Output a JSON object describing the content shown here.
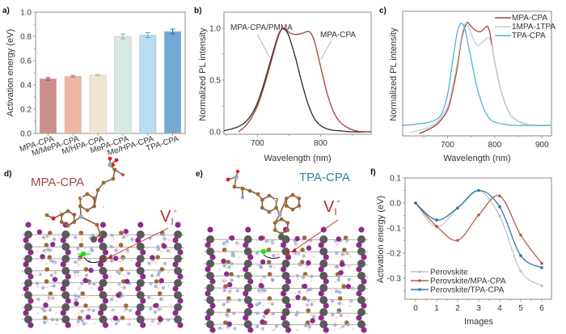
{
  "figure": {
    "panels": {
      "a": "a)",
      "b": "b)",
      "c": "c)",
      "d": "d)",
      "e": "e)",
      "f": "f)"
    },
    "structures": {
      "d": {
        "title": "MPA-CPA",
        "title_color": "#a04a45",
        "vacancy_label": "V",
        "vacancy_sub": "I",
        "vacancy_sup": "-",
        "vacancy_color": "#c0282b"
      },
      "e": {
        "title": "TPA-CPA",
        "title_color": "#2f7fae",
        "vacancy_label": "V",
        "vacancy_sub": "I",
        "vacancy_sup": "-",
        "vacancy_color": "#c0282b"
      }
    },
    "atom_colors": {
      "pb": "#5a5a5a",
      "iodine": "#8e2a8c",
      "carbon": "#9a6a3a",
      "nitrogen": "#9aa8d0",
      "hydrogen": "#f0d8d8",
      "oxygen": "#e02020",
      "migrating_iodine": "#22dd22"
    }
  },
  "chart_data": [
    {
      "id": "a",
      "type": "bar",
      "title": "",
      "xlabel": "",
      "ylabel": "Activation energy (eV)",
      "ylim": [
        0.0,
        1.0
      ],
      "yticks": [
        "0.0",
        "0.2",
        "0.4",
        "0.6",
        "0.8",
        "1.0"
      ],
      "categories": [
        "MPA-CPA",
        "M/MePA-CPA",
        "M/HPA-CPA",
        "MePA-CPA",
        "Me/HPA-CPA",
        "TPA-CPA"
      ],
      "values": [
        0.45,
        0.47,
        0.48,
        0.8,
        0.81,
        0.84
      ],
      "errors": [
        0.01,
        0.008,
        0.006,
        0.02,
        0.02,
        0.02
      ],
      "colors": [
        "#c9908d",
        "#ecb8a3",
        "#eee6d2",
        "#d8e8e2",
        "#b9dcef",
        "#74a9d3"
      ],
      "error_colors": [
        "#9c3a3a",
        "#c87060",
        "#c8b890",
        "#90a8a0",
        "#5a9ac8",
        "#2a6aa8"
      ],
      "grid": false,
      "legend": "none"
    },
    {
      "id": "b",
      "type": "line",
      "xlabel": "Wavelength (nm)",
      "ylabel": "Normalized PL intensity",
      "xlim": [
        647,
        880
      ],
      "ylim": [
        -0.02,
        1.12
      ],
      "xticks": [
        "700",
        "800"
      ],
      "yticks": [
        "0.0",
        "0.5",
        "1.0"
      ],
      "grid": false,
      "legend": "annotations",
      "series": [
        {
          "name": "MPA-CPA/PMMA",
          "color": "#2b2b2b",
          "x": [
            647,
            660,
            670,
            680,
            690,
            700,
            710,
            720,
            730,
            735,
            740,
            745,
            750,
            760,
            770,
            780,
            790,
            800,
            810,
            820,
            830,
            850,
            880
          ],
          "y": [
            0.01,
            0.03,
            0.05,
            0.09,
            0.16,
            0.28,
            0.46,
            0.67,
            0.88,
            0.96,
            1.0,
            0.98,
            0.92,
            0.72,
            0.48,
            0.27,
            0.13,
            0.06,
            0.03,
            0.015,
            0.01,
            0.0,
            0.0
          ]
        },
        {
          "name": "MPA-CPA",
          "color": "#a8403c",
          "x": [
            670,
            680,
            690,
            700,
            710,
            720,
            730,
            735,
            740,
            745,
            750,
            760,
            770,
            780,
            785,
            790,
            795,
            800,
            810,
            820,
            830,
            840,
            850,
            860,
            880
          ],
          "y": [
            0.0,
            0.05,
            0.13,
            0.25,
            0.43,
            0.64,
            0.86,
            0.95,
            1.0,
            0.99,
            0.96,
            0.94,
            0.95,
            0.97,
            0.95,
            0.88,
            0.76,
            0.63,
            0.38,
            0.2,
            0.1,
            0.05,
            0.02,
            0.005,
            0.0
          ]
        }
      ],
      "annotations": [
        {
          "text": "MPA-CPA/PMMA",
          "series": "MPA-CPA/PMMA",
          "color": "#555555"
        },
        {
          "text": "MPA-CPA",
          "series": "MPA-CPA",
          "color": "#b05050"
        }
      ]
    },
    {
      "id": "c",
      "type": "line",
      "xlabel": "Wavelength (nm)",
      "ylabel": "Normalized PL intensity",
      "xlim": [
        605,
        920
      ],
      "ylim": [
        -0.1,
        1.12
      ],
      "xticks": [
        "700",
        "800",
        "900"
      ],
      "yticks": [],
      "grid": false,
      "legend": "top-right",
      "series": [
        {
          "name": "MPA-CPA",
          "color": "#a8403c",
          "x": [
            640,
            660,
            680,
            700,
            710,
            720,
            730,
            740,
            745,
            750,
            760,
            770,
            780,
            785,
            790,
            795,
            800,
            810,
            820,
            830,
            840,
            860,
            880,
            920
          ],
          "y": [
            -0.08,
            -0.04,
            0.02,
            0.15,
            0.32,
            0.55,
            0.85,
            1.0,
            1.0,
            0.97,
            0.93,
            0.92,
            0.96,
            0.97,
            0.9,
            0.76,
            0.62,
            0.4,
            0.24,
            0.13,
            0.07,
            0.02,
            0.0,
            0.0
          ]
        },
        {
          "name": "1MPA-1TPA",
          "color": "#b9d3ca",
          "x": [
            620,
            640,
            660,
            680,
            700,
            710,
            720,
            730,
            738,
            745,
            750,
            760,
            765,
            770,
            780,
            788,
            795,
            800,
            810,
            820,
            830,
            840,
            860,
            880,
            920
          ],
          "y": [
            -0.07,
            -0.05,
            -0.02,
            0.04,
            0.18,
            0.36,
            0.6,
            0.88,
            1.0,
            0.97,
            0.9,
            0.8,
            0.78,
            0.8,
            0.84,
            0.86,
            0.75,
            0.62,
            0.4,
            0.24,
            0.13,
            0.07,
            0.02,
            0.0,
            0.0
          ]
        },
        {
          "name": "TPA-CPA",
          "color": "#55b3d3",
          "x": [
            605,
            630,
            660,
            680,
            690,
            700,
            710,
            720,
            728,
            735,
            740,
            750,
            760,
            770,
            780,
            790,
            800,
            820,
            840,
            880,
            920
          ],
          "y": [
            0.0,
            0.01,
            0.03,
            0.07,
            0.14,
            0.3,
            0.6,
            0.9,
            1.0,
            0.97,
            0.88,
            0.65,
            0.42,
            0.25,
            0.13,
            0.06,
            0.03,
            0.01,
            0.0,
            0.0,
            0.0
          ]
        }
      ]
    },
    {
      "id": "f",
      "type": "line",
      "xlabel": "Images",
      "ylabel": "Activation energy (eV)",
      "xlim": [
        -0.6,
        6.6
      ],
      "ylim": [
        -0.38,
        0.1
      ],
      "xticks": [
        "0",
        "1",
        "2",
        "3",
        "4",
        "5",
        "6"
      ],
      "yticks": [
        "0.1",
        "0.0",
        "-0.1",
        "-0.2",
        "-0.3"
      ],
      "grid": false,
      "legend": "bottom-left",
      "series": [
        {
          "name": "Perovskite",
          "color": "#c4c4c4",
          "x": [
            0,
            1,
            2,
            3,
            4,
            5,
            6
          ],
          "y": [
            0.0,
            -0.095,
            -0.02,
            0.05,
            -0.052,
            -0.272,
            -0.33
          ]
        },
        {
          "name": "Perovskite/MPA-CPA",
          "color": "#b65a4e",
          "x": [
            0,
            1,
            2,
            3,
            4,
            5,
            6
          ],
          "y": [
            0.0,
            -0.093,
            -0.149,
            -0.048,
            0.028,
            -0.128,
            -0.241
          ]
        },
        {
          "name": "Perovskite/TPA-CPA",
          "color": "#2a78a8",
          "x": [
            0,
            1,
            2,
            3,
            4,
            5,
            6
          ],
          "y": [
            0.0,
            -0.068,
            -0.02,
            0.05,
            -0.015,
            -0.21,
            -0.258
          ]
        }
      ]
    }
  ]
}
